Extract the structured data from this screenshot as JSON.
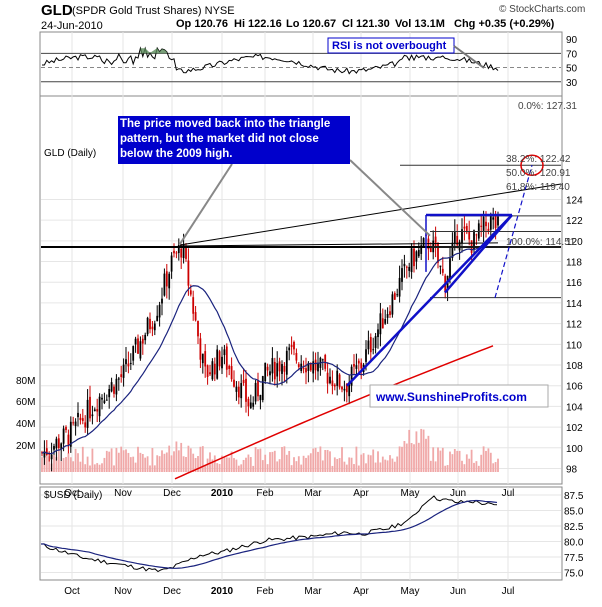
{
  "header": {
    "symbol": "GLD",
    "name": "(SPDR Gold Trust Shares) NYSE",
    "date": "24-Jun-2010",
    "op": "Op 120.76",
    "hi": "Hi 122.16",
    "lo": "Lo 120.67",
    "cl": "Cl 121.30",
    "vol": "Vol 13.1M",
    "chg": "Chg +0.35 (+0.29%)",
    "watermark": "© StockCharts.com"
  },
  "panels": {
    "main_label": "GLD (Daily)",
    "usd_label": "$USD (Daily)"
  },
  "annotations": {
    "triangle_note": "The price moved back into the triangle pattern, but the market did not close below the 2009 high.",
    "rsi_note": "RSI is not overbought",
    "website": "www.SunshineProfits.com"
  },
  "colors": {
    "up_candle": "#000000",
    "down_candle": "#cc0000",
    "ma50": "#1a237e",
    "ma200": "#e00000",
    "trendline": "#1010c8",
    "annotation_bg": "#0000cc",
    "website_text": "#0000cc",
    "volume_bar": "#f0a8a8",
    "rsi_fill": "#5a8a5a",
    "circle": "#e00000"
  },
  "chart_data": [
    {
      "type": "line",
      "panel": "RSI",
      "y_ticks": [
        "30",
        "50",
        "70",
        "90"
      ],
      "ylim": [
        10,
        100
      ],
      "reference_lines": [
        30,
        50,
        70
      ]
    },
    {
      "type": "candlestick",
      "panel": "GLD (Daily)",
      "x_labels": [
        "Oct",
        "Nov",
        "Dec",
        "2010",
        "Feb",
        "Mar",
        "Apr",
        "May",
        "Jun",
        "Jul"
      ],
      "y_ticks": [
        "98",
        "100",
        "102",
        "104",
        "106",
        "108",
        "110",
        "112",
        "114",
        "116",
        "118",
        "120",
        "122",
        "124"
      ],
      "ylim": [
        96.5,
        134
      ],
      "key_points": [
        {
          "month": "Oct",
          "price": 101.5
        },
        {
          "month": "Nov",
          "price": 107
        },
        {
          "month": "early Dec",
          "price": 119.5
        },
        {
          "month": "mid Dec",
          "price": 107
        },
        {
          "month": "late Jan",
          "price": 104
        },
        {
          "month": "mid Feb",
          "price": 109
        },
        {
          "month": "late Mar",
          "price": 106
        },
        {
          "month": "early May",
          "price": 118
        },
        {
          "month": "late Jun",
          "price": 121.3
        }
      ],
      "fibonacci": [
        {
          "label": "38.2%: 122.42",
          "value": 122.42
        },
        {
          "label": "50.0%: 120.91",
          "value": 120.91
        },
        {
          "label": "61.8%: 119.40",
          "value": 119.4
        },
        {
          "label": "100.0%: 114.51",
          "value": 114.51
        },
        {
          "label": "0.0%: 127.31",
          "value": 127.31
        }
      ],
      "volume_labels": [
        "20M",
        "40M",
        "60M",
        "80M"
      ]
    },
    {
      "type": "line",
      "panel": "$USD (Daily)",
      "x_labels": [
        "Oct",
        "Nov",
        "Dec",
        "2010",
        "Feb",
        "Mar",
        "Apr",
        "May",
        "Jun",
        "Jul"
      ],
      "y_ticks": [
        "75.0",
        "77.5",
        "80.0",
        "82.5",
        "85.0",
        "87.5"
      ],
      "ylim": [
        73.8,
        88.8
      ]
    }
  ]
}
